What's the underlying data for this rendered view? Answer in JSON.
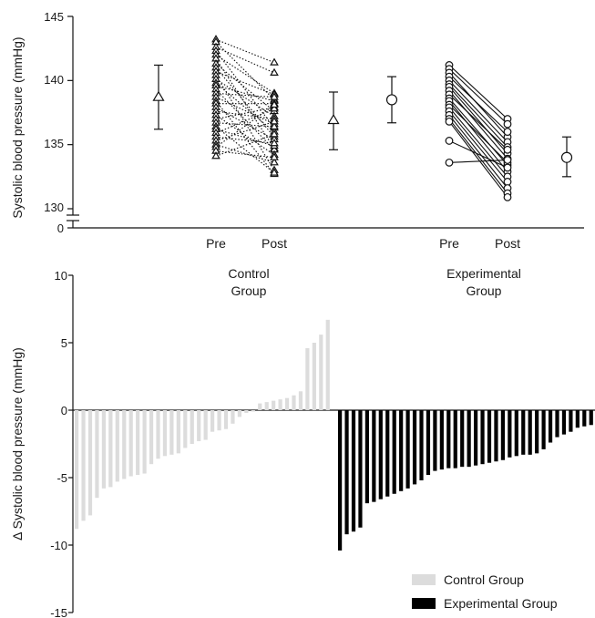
{
  "chart_data": [
    {
      "type": "scatter",
      "ylabel": "Systolic blood pressure (mmHg)",
      "yticks": [
        "145",
        "140",
        "135",
        "130",
        "0"
      ],
      "ylim": [
        130,
        145
      ],
      "axis_break": true,
      "x_labels": [
        "Pre",
        "Post",
        "Pre",
        "Post"
      ],
      "group_labels": [
        {
          "line1": "Control",
          "line2": "Group"
        },
        {
          "line1": "Experimental",
          "line2": "Group"
        }
      ],
      "series": [
        {
          "name": "Control Group",
          "marker": "triangle",
          "line_style": "dotted",
          "pre_mean": 138.7,
          "pre_err": [
            136.2,
            141.2
          ],
          "post_mean": 136.9,
          "post_err": [
            134.6,
            139.1
          ],
          "pre": [
            143.2,
            143.0,
            142.6,
            142.3,
            142.0,
            141.7,
            141.3,
            141.0,
            140.7,
            140.4,
            140.1,
            139.8,
            139.6,
            139.3,
            139.0,
            138.7,
            138.4,
            138.2,
            137.9,
            137.6,
            137.3,
            137.0,
            136.7,
            136.4,
            136.2,
            135.9,
            135.6,
            135.3,
            135.0,
            134.8,
            134.5,
            134.1
          ],
          "post": [
            141.4,
            138.5,
            140.6,
            136.3,
            139.0,
            134.7,
            137.6,
            135.6,
            138.9,
            133.0,
            137.2,
            136.0,
            138.4,
            134.6,
            138.7,
            136.6,
            132.7,
            138.2,
            135.4,
            137.0,
            134.2,
            137.9,
            136.4,
            132.8,
            134.9,
            137.8,
            135.1,
            136.8,
            133.6,
            138.1,
            134.0,
            135.8
          ]
        },
        {
          "name": "Experimental Group",
          "marker": "circle",
          "line_style": "solid",
          "pre_mean": 138.5,
          "pre_err": [
            136.7,
            140.3
          ],
          "post_mean": 134.0,
          "post_err": [
            132.5,
            135.6
          ],
          "pre": [
            141.2,
            140.9,
            140.6,
            140.3,
            140.0,
            139.7,
            139.5,
            139.2,
            138.9,
            138.6,
            138.4,
            138.1,
            137.9,
            137.6,
            137.3,
            137.0,
            136.8,
            135.3,
            133.6
          ],
          "post": [
            137.0,
            136.6,
            135.6,
            136.0,
            135.2,
            134.8,
            134.3,
            133.9,
            134.6,
            133.4,
            132.9,
            133.6,
            132.5,
            132.1,
            131.6,
            131.2,
            130.9,
            133.2,
            133.8
          ]
        }
      ]
    },
    {
      "type": "bar",
      "ylabel": "Δ Systolic blood pressure (mmHg)",
      "ylim": [
        -15,
        10
      ],
      "yticks": [
        "10",
        "5",
        "0",
        "-5",
        "-10",
        "-15"
      ],
      "legend_position": "bottom-right",
      "series": [
        {
          "name": "Control Group",
          "color": "#dcdcdc",
          "values": [
            -8.8,
            -8.2,
            -7.8,
            -6.5,
            -5.8,
            -5.7,
            -5.3,
            -5.1,
            -4.9,
            -4.8,
            -4.7,
            -4.0,
            -3.6,
            -3.4,
            -3.3,
            -3.2,
            -2.8,
            -2.5,
            -2.3,
            -2.2,
            -1.6,
            -1.5,
            -1.4,
            -1.0,
            -0.5,
            -0.2,
            -0.1,
            0.5,
            0.6,
            0.7,
            0.8,
            0.9,
            1.1,
            1.4,
            4.6,
            5.0,
            5.6,
            6.7
          ]
        },
        {
          "name": "Experimental Group",
          "color": "#000000",
          "values": [
            -10.4,
            -9.2,
            -9.0,
            -8.7,
            -6.9,
            -6.8,
            -6.6,
            -6.4,
            -6.2,
            -6.0,
            -5.8,
            -5.5,
            -5.2,
            -4.8,
            -4.5,
            -4.4,
            -4.3,
            -4.3,
            -4.2,
            -4.2,
            -4.1,
            -4.0,
            -3.9,
            -3.8,
            -3.7,
            -3.5,
            -3.4,
            -3.3,
            -3.3,
            -3.2,
            -2.9,
            -2.4,
            -2.0,
            -1.8,
            -1.6,
            -1.3,
            -1.2,
            -1.1,
            0.1,
            0.2
          ]
        }
      ]
    }
  ]
}
